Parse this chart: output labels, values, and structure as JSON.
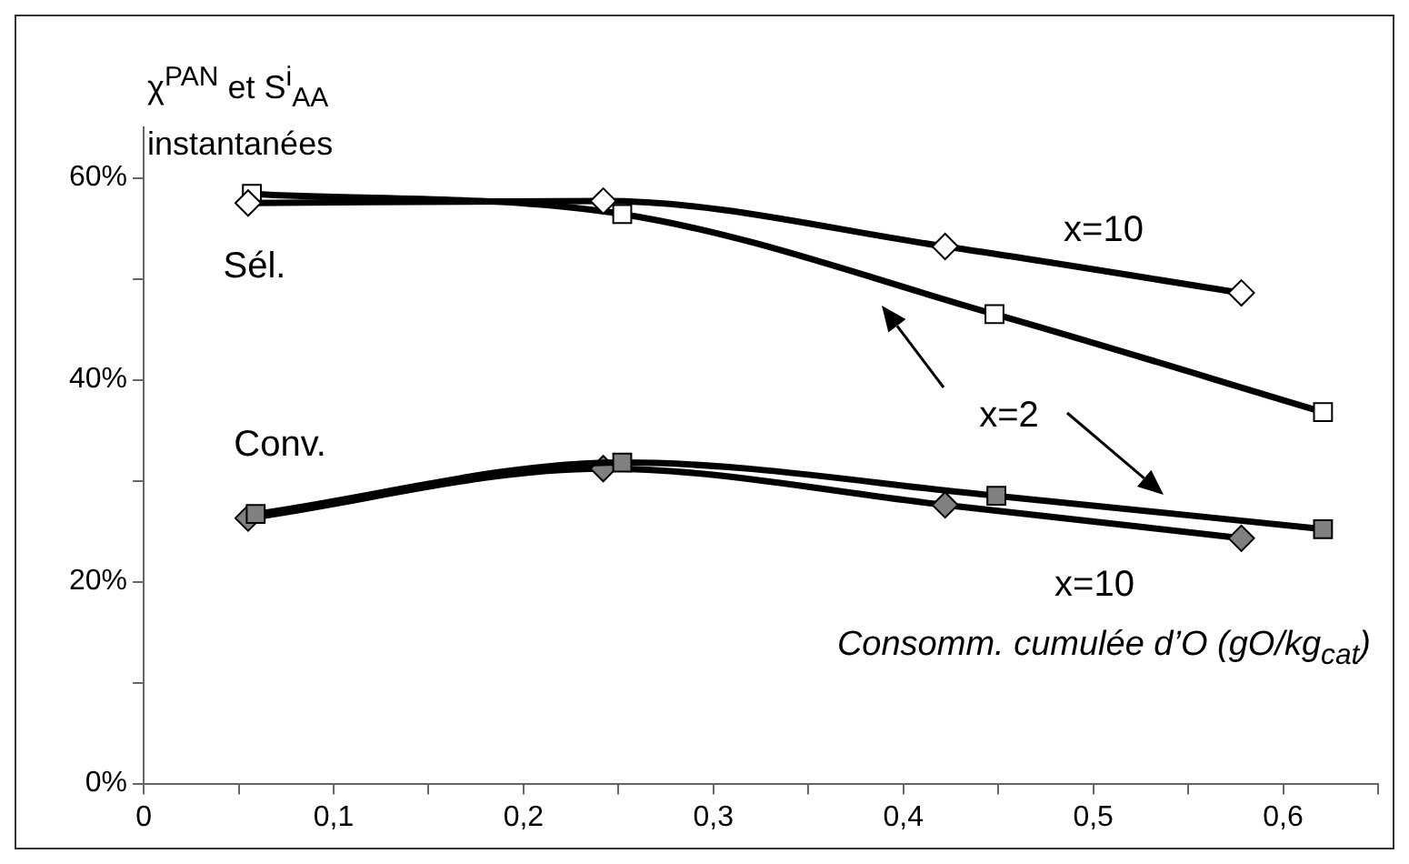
{
  "chart_data": {
    "type": "line",
    "xlabel": "Consomm. cumulée d’O (gO/kg$_{cat}$)",
    "ylabel": "χ$^{PAN}$ et S$^{i}$$_{AA}$ instantanées",
    "xlim": [
      0,
      0.65
    ],
    "xticks": [
      0,
      {
        "value": 0.05,
        "label": null
      },
      {
        "value": 0.1,
        "label": "0,1"
      },
      {
        "value": 0.15,
        "label": null
      },
      {
        "value": 0.2,
        "label": "0,2"
      },
      {
        "value": 0.25,
        "label": null
      },
      {
        "value": 0.3,
        "label": "0,3"
      },
      {
        "value": 0.35,
        "label": null
      },
      {
        "value": 0.4,
        "label": "0,4"
      },
      {
        "value": 0.45,
        "label": null
      },
      {
        "value": 0.5,
        "label": "0,5"
      },
      {
        "value": 0.55,
        "label": null
      },
      {
        "value": 0.6,
        "label": "0,6"
      },
      {
        "value": 0.65,
        "label": null
      }
    ],
    "ylim": [
      0,
      65
    ],
    "yticks": [
      {
        "value": 0,
        "label": "0%"
      },
      {
        "value": 10,
        "label": null
      },
      {
        "value": 20,
        "label": "20%"
      },
      {
        "value": 30,
        "label": null
      },
      {
        "value": 40,
        "label": "40%"
      },
      {
        "value": 50,
        "label": null
      },
      {
        "value": 60,
        "label": "60%"
      }
    ],
    "grid": false,
    "legend": false,
    "series": [
      {
        "color": "#ffffff",
        "marker": "diamond",
        "x": [
          0.055,
          0.242,
          0.422,
          0.578
        ],
        "values": [
          57.5,
          57.7,
          53.2,
          48.6
        ]
      },
      {
        "color": "#ffffff",
        "marker": "square",
        "x": [
          0.057,
          0.252,
          0.448,
          0.621
        ],
        "values": [
          58.4,
          56.4,
          46.5,
          36.8
        ]
      },
      {
        "color": "#808080",
        "marker": "square",
        "x": [
          0.059,
          0.252,
          0.449,
          0.621
        ],
        "values": [
          26.7,
          31.8,
          28.5,
          25.2
        ]
      },
      {
        "color": "#808080",
        "marker": "diamond",
        "x": [
          0.055,
          0.242,
          0.422,
          0.578
        ],
        "values": [
          26.3,
          31.2,
          27.6,
          24.3
        ]
      }
    ],
    "annotations": [
      "Sél.",
      "Conv.",
      "x=10",
      "x=2",
      "x=10"
    ]
  }
}
